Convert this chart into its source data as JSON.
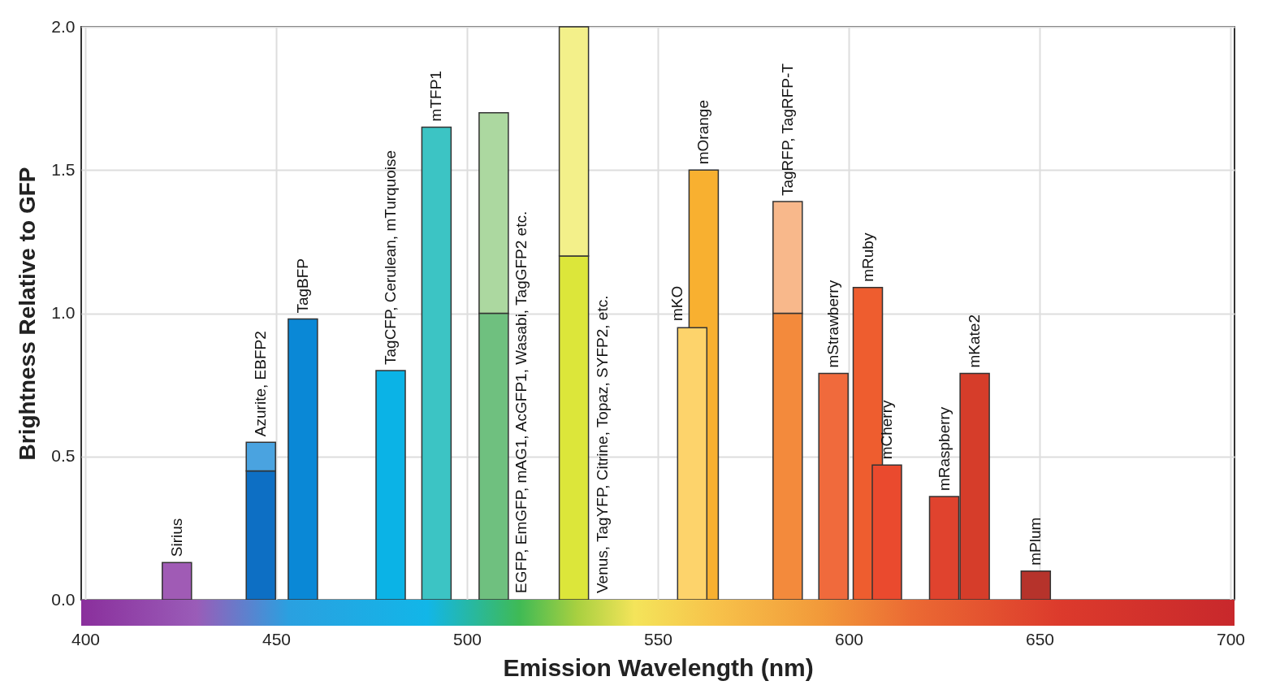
{
  "chart_data": {
    "type": "bar",
    "stacked": true,
    "xlabel": "Emission Wavelength (nm)",
    "ylabel": "Brightness Relative to GFP",
    "x": [
      424,
      446,
      457,
      480,
      492,
      507,
      528,
      559,
      562,
      584,
      596,
      605,
      610,
      625,
      633,
      649
    ],
    "series": [
      {
        "values": [
          0.13,
          0.45,
          0.98,
          0.8,
          1.65,
          1.0,
          1.2,
          0.95,
          1.5,
          1.0,
          0.79,
          1.09,
          0.47,
          0.36,
          0.79,
          0.1
        ],
        "colors": [
          "#a05bb5",
          "#0d6fc4",
          "#0a88d6",
          "#0bb3e6",
          "#3cc4c4",
          "#6fc07f",
          "#dce63a",
          "#fdd36b",
          "#f8b030",
          "#f38a3c",
          "#f06a3c",
          "#ee5d2f",
          "#ea4a2e",
          "#e0432e",
          "#d63d2a",
          "#b6332b"
        ]
      },
      {
        "values": [
          null,
          0.1,
          null,
          null,
          null,
          0.7,
          0.8,
          null,
          null,
          0.39,
          null,
          null,
          null,
          null,
          null,
          null
        ],
        "colors": [
          null,
          "#4aa3e0",
          null,
          null,
          null,
          "#acd8a0",
          "#f3f08a",
          null,
          null,
          "#f8b88b",
          null,
          null,
          null,
          null,
          null,
          null
        ]
      }
    ],
    "annotations": [
      {
        "text": "Sirius",
        "x": 424,
        "y": 0.13
      },
      {
        "text": "Azurite, EBFP2",
        "x": 446,
        "y": 0.55
      },
      {
        "text": "TagBFP",
        "x": 457,
        "y": 0.98
      },
      {
        "text": "TagCFP, Cerulean, mTurquoise",
        "x": 480,
        "y": 0.8
      },
      {
        "text": "mTFP1",
        "x": 492,
        "y": 1.65
      },
      "EGFP, EmGFP, mAG1, AcGFP1, Wasabi, TagGFP2 etc.",
      "Venus, TagYFP, Citrine, Topaz, SYFP2, etc.",
      "mKO",
      {
        "text": "mOrange",
        "x": 562,
        "y": 1.5
      },
      {
        "text": "TagRFP, TagRFP-T",
        "x": 584,
        "y": 1.39
      },
      {
        "text": "mStrawberry",
        "x": 596,
        "y": 0.79
      },
      {
        "text": "mRuby",
        "x": 605,
        "y": 1.09
      },
      {
        "text": "mCherry",
        "x": 610,
        "y": 0.47
      },
      {
        "text": "mRaspberry",
        "x": 625,
        "y": 0.36
      },
      {
        "text": "mKate2",
        "x": 633,
        "y": 0.79
      },
      {
        "text": "mPlum",
        "x": 649,
        "y": 0.1
      }
    ],
    "xlim": [
      400,
      700
    ],
    "xticks": [
      400,
      450,
      500,
      550,
      600,
      650,
      700
    ],
    "ylim": [
      0,
      2
    ],
    "yticks": [
      {
        "value": 0,
        "label": "0.0"
      },
      {
        "value": 0.5,
        "label": "0.5"
      },
      {
        "value": 1,
        "label": "1.0"
      },
      {
        "value": 1.5,
        "label": "1.5"
      },
      {
        "value": 2,
        "label": "2.0"
      }
    ],
    "grid": true
  }
}
